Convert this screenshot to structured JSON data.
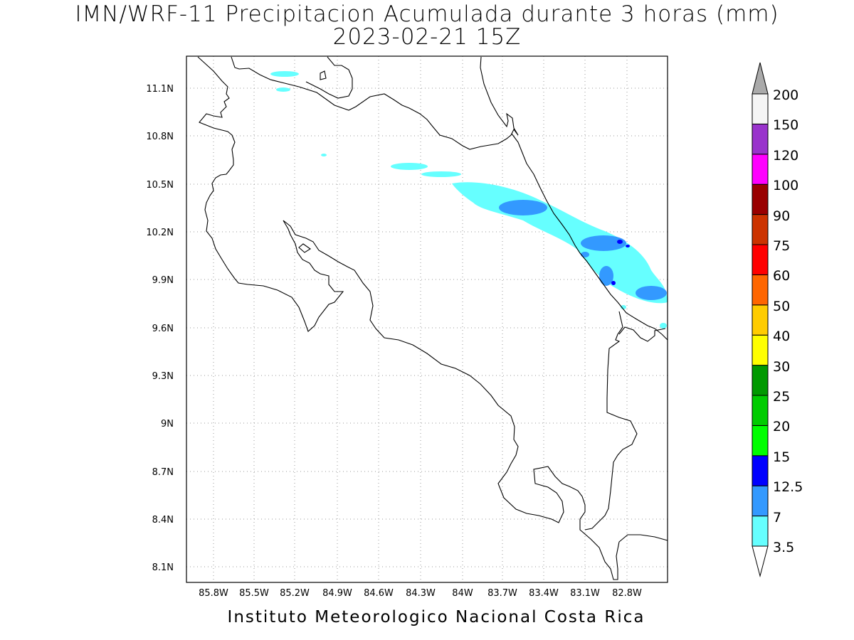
{
  "title": "IMN/WRF-11 Precipitacion Acumulada durante 3 horas (mm)",
  "subtitle": "2023-02-21 15Z",
  "footer": "Instituto Meteorologico Nacional Costa Rica",
  "map": {
    "region": "Costa Rica",
    "lon_range": [
      -86.0,
      -82.6
    ],
    "lat_range": [
      8.0,
      11.3
    ],
    "grid": "dotted",
    "lon_ticks": [
      "85.8W",
      "85.5W",
      "85.2W",
      "84.9W",
      "84.6W",
      "84.3W",
      "84W",
      "83.7W",
      "83.4W",
      "83.1W",
      "82.8W"
    ],
    "lat_ticks": [
      "11.1N",
      "10.8N",
      "10.5N",
      "10.2N",
      "9.9N",
      "9.6N",
      "9.3N",
      "9N",
      "8.7N",
      "8.4N",
      "8.1N"
    ]
  },
  "colorbar": {
    "levels": [
      "3.5",
      "7",
      "12.5",
      "15",
      "20",
      "25",
      "30",
      "40",
      "50",
      "60",
      "75",
      "90",
      "100",
      "120",
      "150",
      "200"
    ],
    "colors": [
      "#66ffff",
      "#3399ff",
      "#0000ff",
      "#00ff00",
      "#00cc00",
      "#009900",
      "#ffff00",
      "#ffcc00",
      "#ff6600",
      "#ff0000",
      "#cc3300",
      "#990000",
      "#ff00ff",
      "#9933cc",
      "#f5f5f5"
    ],
    "over_color": "#aaaaaa",
    "under_color": "#ffffff"
  },
  "precip_areas": [
    {
      "level": "3.5",
      "color": "#66ffff",
      "location": "Caribbean slope band (north-central to Limon coast)"
    },
    {
      "level": "7",
      "color": "#3399ff",
      "location": "embedded cores near 83.6W 10.35N and 82.8W 10.1N"
    },
    {
      "level": "12.5",
      "color": "#0000ff",
      "location": "small cores near 82.8W 10.15N and 83.0W 9.85N"
    }
  ]
}
